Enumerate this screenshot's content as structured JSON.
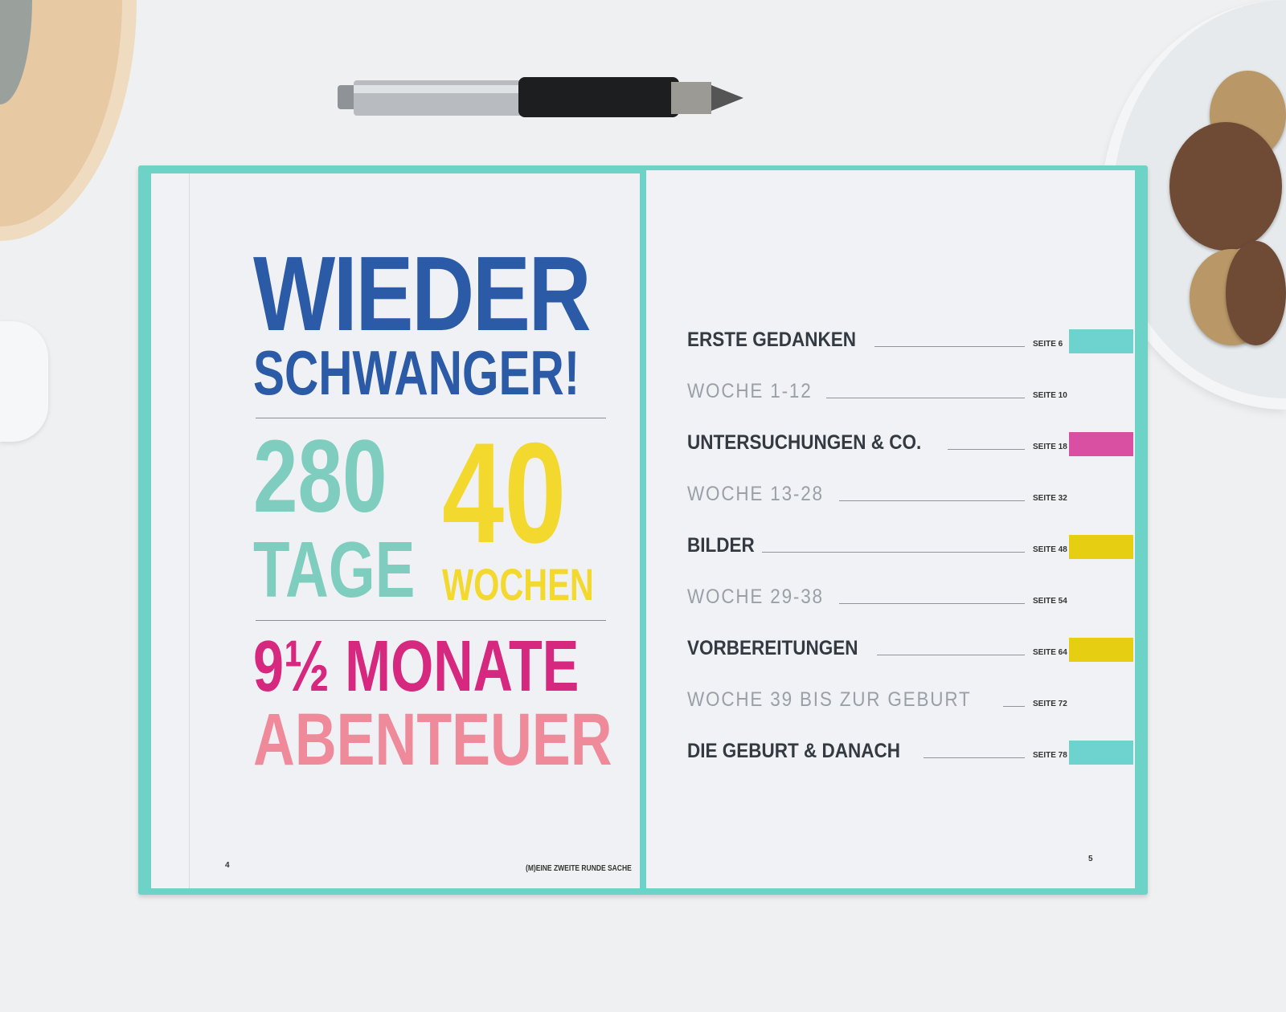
{
  "left_page": {
    "title_line1": "WIEDER",
    "title_line2": "SCHWANGER!",
    "days_number": "280",
    "days_label": "TAGE",
    "weeks_number": "40",
    "weeks_label": "WOCHEN",
    "months_line": "9½ MONATE",
    "adventure_line": "ABENTEUER",
    "page_number": "4",
    "running_footer": "(M)EINE ZWEITE RUNDE SACHE"
  },
  "right_page": {
    "toc": [
      {
        "title": "ERSTE GEDANKEN",
        "page": "SEITE 6",
        "style": "bold",
        "tab_color": "#6ed3cf"
      },
      {
        "title": "WOCHE 1-12",
        "page": "SEITE 10",
        "style": "light"
      },
      {
        "title": "UNTERSUCHUNGEN & CO.",
        "page": "SEITE 18",
        "style": "bold",
        "tab_color": "#d94fa1"
      },
      {
        "title": "WOCHE 13-28",
        "page": "SEITE 32",
        "style": "light"
      },
      {
        "title": "BILDER",
        "page": "SEITE 48",
        "style": "bold",
        "tab_color": "#e6cf12"
      },
      {
        "title": "WOCHE 29-38",
        "page": "SEITE 54",
        "style": "light"
      },
      {
        "title": "VORBEREITUNGEN",
        "page": "SEITE 64",
        "style": "bold",
        "tab_color": "#e6cf12"
      },
      {
        "title": "WOCHE 39 BIS ZUR GEBURT",
        "page": "SEITE 72",
        "style": "light"
      },
      {
        "title": "DIE GEBURT & DANACH",
        "page": "SEITE 78",
        "style": "bold",
        "tab_color": "#6ed3cf"
      }
    ],
    "page_number": "5"
  },
  "colors": {
    "title_blue": "#2b5aa6",
    "teal": "#7fcdbf",
    "yellow": "#f3d92e",
    "magenta": "#d6287f",
    "pink": "#ef8a9b",
    "book_cover": "#6dd3c6"
  }
}
